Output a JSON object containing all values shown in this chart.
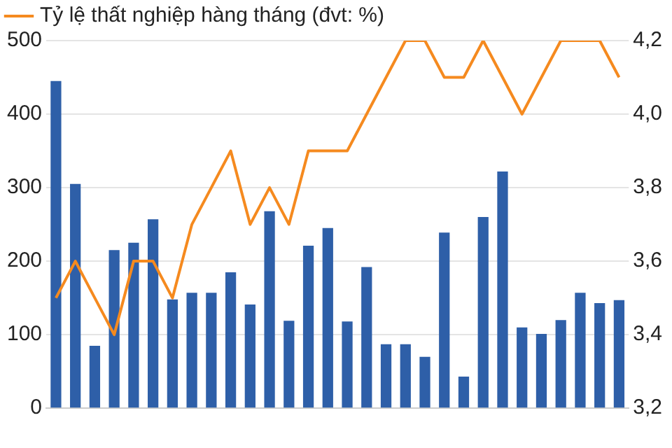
{
  "chart_data": {
    "type": "bar",
    "categories": [
      null,
      null,
      null,
      null,
      null,
      null,
      null,
      null,
      null,
      null,
      null,
      null,
      null,
      null,
      null,
      null,
      null,
      null,
      null,
      null,
      null,
      null,
      null,
      null,
      null,
      null,
      null,
      null,
      null,
      null
    ],
    "series": [
      {
        "color": "#2e5fa8",
        "values": [
          445,
          305,
          85,
          215,
          225,
          257,
          148,
          157,
          157,
          185,
          141,
          268,
          119,
          221,
          245,
          118,
          192,
          87,
          87,
          70,
          239,
          43,
          260,
          322,
          110,
          101,
          120,
          157,
          143,
          147
        ]
      },
      {
        "type": "line",
        "axis": "y2",
        "name": "Tỷ lệ thất nghiệp hàng tháng (đvt: %)",
        "color": "#f58a1f",
        "values": [
          3.5,
          3.6,
          3.5,
          3.4,
          3.6,
          3.6,
          3.5,
          3.7,
          3.8,
          3.9,
          3.7,
          3.8,
          3.7,
          3.9,
          3.9,
          3.9,
          4.0,
          4.1,
          4.2,
          4.2,
          4.1,
          4.1,
          4.2,
          4.1,
          4.0,
          4.1,
          4.2,
          4.2,
          4.2,
          4.1
        ]
      }
    ],
    "ylim": [
      0,
      500
    ],
    "yticks": [
      0,
      100,
      200,
      300,
      400,
      500
    ],
    "y2lim": [
      3.2,
      4.2
    ],
    "y2ticks": [
      {
        "value": 3.2,
        "label": "3,2"
      },
      {
        "value": 3.4,
        "label": "3,4"
      },
      {
        "value": 3.6,
        "label": "3,6"
      },
      {
        "value": 3.8,
        "label": "3,8"
      },
      {
        "value": 4.0,
        "label": "4,0"
      },
      {
        "value": 4.2,
        "label": "4,2"
      }
    ],
    "grid": "y",
    "legend": "top left",
    "marker": "none",
    "line_style": "solid"
  }
}
